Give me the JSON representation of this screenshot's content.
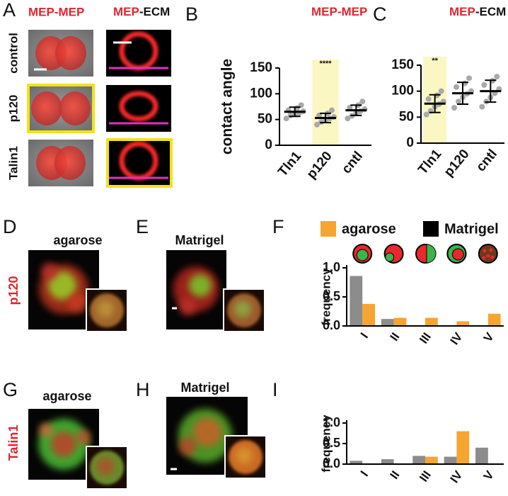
{
  "figure": {
    "letters": [
      "A",
      "B",
      "C",
      "D",
      "E",
      "F",
      "G",
      "H",
      "I"
    ],
    "a_left_header": "MEP-MEP",
    "a_right_header": [
      "MEP",
      "-ECM"
    ],
    "a_rows": [
      "control",
      "p120",
      "Talin1"
    ],
    "d_label": "agarose",
    "e_label": "Matrigel",
    "g_label": "agarose",
    "h_label": "Matrigel",
    "row_labels": [
      "p120",
      "Talin1"
    ]
  },
  "chart_data": [
    {
      "type": "dotplot",
      "title": [
        "MEP-MEP"
      ],
      "y_label": "contact angle",
      "categories": [
        "Tln1",
        "p120",
        "cntl"
      ],
      "points": [
        [
          52,
          58,
          60,
          63,
          66,
          68,
          72,
          78
        ],
        [
          40,
          45,
          48,
          52,
          55,
          58,
          62,
          68
        ],
        [
          52,
          57,
          62,
          66,
          70,
          73,
          78,
          85
        ]
      ],
      "means": [
        65,
        53,
        68
      ],
      "sd": [
        9,
        9,
        10
      ],
      "color": "#a9a9a9",
      "highlight": "p120",
      "annotation": {
        "category": "p120",
        "text": "****"
      },
      "ylim": [
        0,
        150
      ],
      "yticks": [
        0,
        50,
        100,
        150
      ]
    },
    {
      "type": "dotplot",
      "title": [
        "MEP",
        "-ECM"
      ],
      "categories": [
        "Tln1",
        "p120",
        "cntl"
      ],
      "points": [
        [
          55,
          62,
          70,
          75,
          80,
          85,
          92,
          100
        ],
        [
          68,
          80,
          88,
          95,
          100,
          108,
          115,
          125
        ],
        [
          70,
          80,
          88,
          96,
          104,
          112,
          120,
          128
        ]
      ],
      "means": [
        76,
        96,
        100
      ],
      "sd": [
        17,
        21,
        21
      ],
      "color": "#a9a9a9",
      "highlight": "Tln1",
      "annotation": {
        "category": "Tln1",
        "text": "**"
      },
      "ylim": [
        0,
        150
      ],
      "yticks": [
        0,
        50,
        100,
        150
      ]
    },
    {
      "type": "bar",
      "y_label": "frequency",
      "categories": [
        "I",
        "II",
        "III",
        "IV",
        "V"
      ],
      "series": [
        {
          "name": "agarose",
          "color": "#f7a531",
          "legend_color": "#f7a531",
          "values": [
            0.38,
            0.14,
            0.14,
            0.08,
            0.21
          ]
        },
        {
          "name": "Matrigel",
          "color": "#8c8c8c",
          "legend_color": "#000000",
          "values": [
            0.86,
            0.12,
            0,
            0,
            0
          ]
        }
      ],
      "legend": "top",
      "ylim": [
        0,
        1
      ],
      "yticks": [
        {
          "value": 0,
          "label": "0.0"
        },
        0.5,
        {
          "value": 1,
          "label": "1.0"
        }
      ]
    },
    {
      "type": "bar",
      "y_label": "frequency",
      "categories": [
        "I",
        "II",
        "III",
        "IV",
        "V"
      ],
      "series": [
        {
          "name": "agarose",
          "color": "#f7a531",
          "values": [
            0,
            0,
            0.18,
            0.8,
            0
          ]
        },
        {
          "name": "Matrigel",
          "color": "#8c8c8c",
          "values": [
            0.08,
            0.12,
            0.2,
            0.18,
            0.4
          ]
        }
      ],
      "legend": "none",
      "ylim": [
        0,
        1
      ],
      "yticks": [
        {
          "value": 0,
          "label": "0.0"
        },
        0.5,
        {
          "value": 1,
          "label": "1.0"
        }
      ]
    }
  ]
}
